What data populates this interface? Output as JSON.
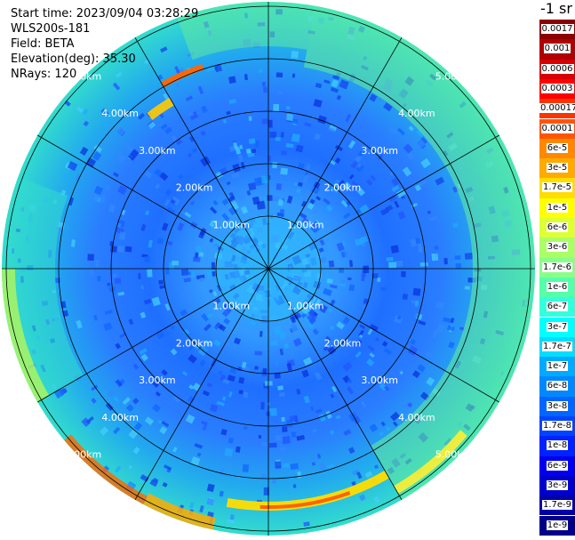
{
  "header": {
    "start_time": "Start time: 2023/09/04 03:28:29",
    "instrument": "WLS200s-181",
    "field": "Field: BETA",
    "elevation": "Elevation(deg): 35.30",
    "nrays": "NRays: 120"
  },
  "legend": {
    "title": "-1 sr",
    "items": [
      {
        "label": "0.0017",
        "color": "#8b0000"
      },
      {
        "label": "0.001",
        "color": "#b00000"
      },
      {
        "label": "0.0006",
        "color": "#d80000"
      },
      {
        "label": "0.0003",
        "color": "#ff0000"
      },
      {
        "label": "0.00017",
        "color": "#ff3300"
      },
      {
        "label": "0.0001",
        "color": "#ff5500"
      },
      {
        "label": "6e-5",
        "color": "#ff8800"
      },
      {
        "label": "3e-5",
        "color": "#ffaa00"
      },
      {
        "label": "1.7e-5",
        "color": "#ffdd00"
      },
      {
        "label": "1e-5",
        "color": "#ffff00"
      },
      {
        "label": "6e-6",
        "color": "#ddff33"
      },
      {
        "label": "3e-6",
        "color": "#aaff66"
      },
      {
        "label": "1.7e-6",
        "color": "#88ff88"
      },
      {
        "label": "1e-6",
        "color": "#55ffaa"
      },
      {
        "label": "6e-7",
        "color": "#33ffdd"
      },
      {
        "label": "3e-7",
        "color": "#00ffff"
      },
      {
        "label": "1.7e-7",
        "color": "#00ddff"
      },
      {
        "label": "1e-7",
        "color": "#00aaff"
      },
      {
        "label": "6e-8",
        "color": "#0088ff"
      },
      {
        "label": "3e-8",
        "color": "#0066ff"
      },
      {
        "label": "1.7e-8",
        "color": "#0044ff"
      },
      {
        "label": "1e-8",
        "color": "#0022ff"
      },
      {
        "label": "6e-9",
        "color": "#0000ee"
      },
      {
        "label": "3e-9",
        "color": "#0000cc"
      },
      {
        "label": "1.7e-9",
        "color": "#0000aa"
      },
      {
        "label": "1e-9",
        "color": "#000088"
      }
    ]
  },
  "ppi": {
    "range_labels": [
      "1.00km",
      "2.00km",
      "3.00km",
      "4.00km",
      "5.00km"
    ],
    "ring_km": [
      1,
      2,
      3,
      4,
      5
    ],
    "spoke_count": 12,
    "max_range_km": 5.1
  }
}
